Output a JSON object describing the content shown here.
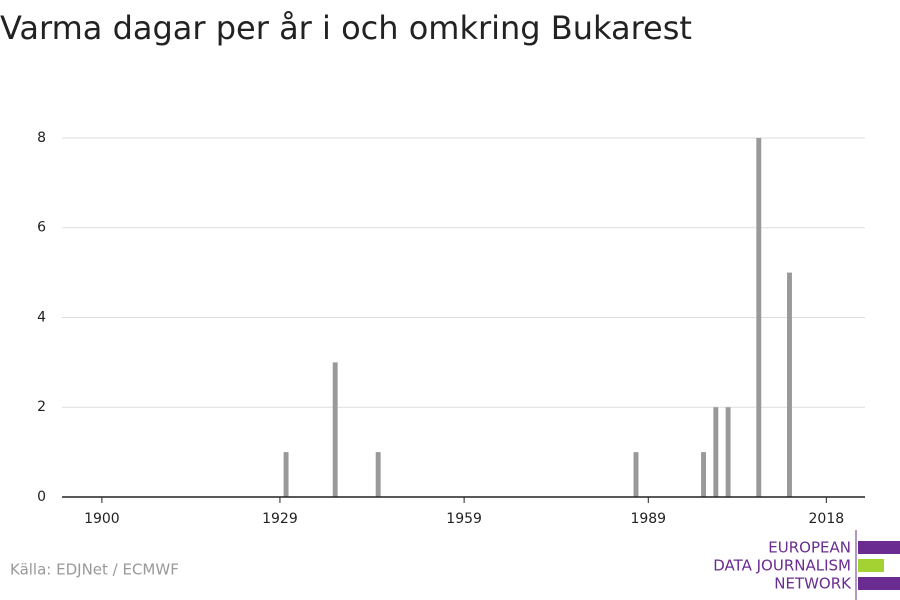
{
  "chart_data": {
    "type": "bar",
    "title": "Varma dagar per år i och omkring Bukarest",
    "x": [
      1930,
      1938,
      1945,
      1987,
      1998,
      2000,
      2002,
      2007,
      2012
    ],
    "values": [
      1,
      3,
      1,
      1,
      1,
      2,
      2,
      8,
      5
    ],
    "color": "#999999",
    "xlim": [
      1893.5,
      2024.3
    ],
    "xticks": [
      1900,
      1929,
      1959,
      1989,
      2018
    ],
    "ylim": [
      0,
      8.4
    ],
    "yticks": [
      0,
      2,
      4,
      6,
      8
    ],
    "grid": true,
    "source": "Källa: EDJNet / ECMWF",
    "logo": [
      "EUROPEAN",
      "DATA JOURNALISM",
      "NETWORK"
    ]
  }
}
